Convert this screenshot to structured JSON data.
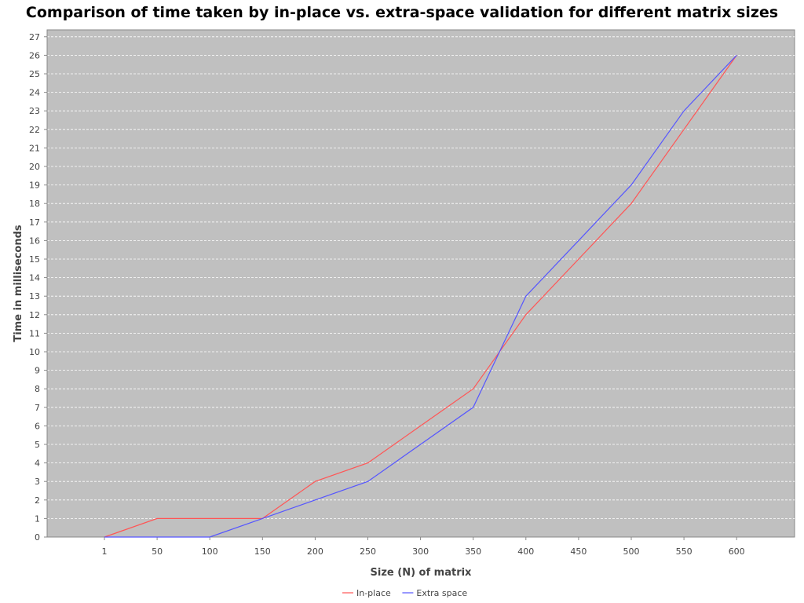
{
  "chart_data": {
    "type": "line",
    "title": "Comparison of time taken by in-place vs. extra-space validation for different matrix sizes",
    "xlabel": "Size (N) of matrix",
    "ylabel": "Time in milliseconds",
    "categories": [
      "1",
      "50",
      "100",
      "150",
      "200",
      "250",
      "300",
      "350",
      "400",
      "450",
      "500",
      "550",
      "600"
    ],
    "ylim": [
      0,
      27
    ],
    "yticks": [
      0,
      1,
      2,
      3,
      4,
      5,
      6,
      7,
      8,
      9,
      10,
      11,
      12,
      13,
      14,
      15,
      16,
      17,
      18,
      19,
      20,
      21,
      22,
      23,
      24,
      25,
      26,
      27
    ],
    "grid": true,
    "legend_position": "bottom-center",
    "series": [
      {
        "name": "In-place",
        "color": "#ff5555",
        "values": [
          0,
          1,
          1,
          1,
          3,
          4,
          6,
          8,
          12,
          15,
          18,
          22,
          26
        ]
      },
      {
        "name": "Extra space",
        "color": "#5555ff",
        "values": [
          0,
          0,
          0,
          1,
          2,
          3,
          5,
          7,
          13,
          16,
          19,
          23,
          26
        ]
      }
    ],
    "plot_background": "#c0c0c0",
    "grid_color": "#ffffff"
  }
}
